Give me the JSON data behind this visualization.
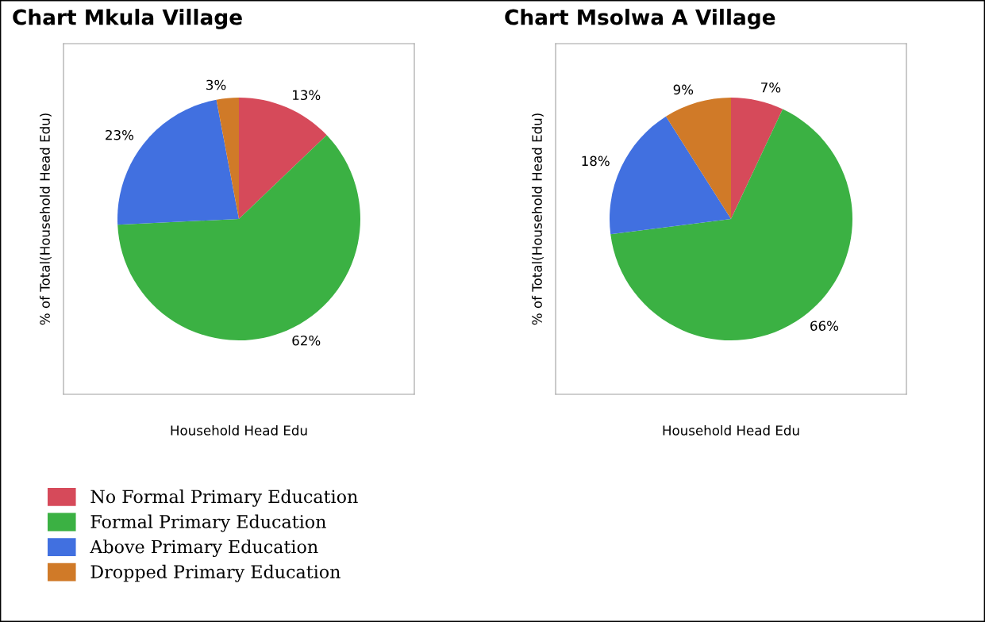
{
  "chart_data": [
    {
      "type": "pie",
      "title": "Chart Mkula Village",
      "xlabel": "Household Head Edu",
      "ylabel": "% of Total(Household Head Edu)",
      "categories": [
        "No Formal Primary Education",
        "Formal Primary Education",
        "Above Primary Education",
        "Dropped Primary Education"
      ],
      "values": [
        13,
        62,
        23,
        3
      ],
      "value_labels": [
        "13%",
        "62%",
        "23%",
        "3%"
      ],
      "colors": [
        "#d64a5a",
        "#3bb143",
        "#4170e0",
        "#d07a28"
      ],
      "legend": "bottom"
    },
    {
      "type": "pie",
      "title": "Chart Msolwa A Village",
      "xlabel": "Household Head Edu",
      "ylabel": "% of Total(Household Head Edu)",
      "categories": [
        null,
        null,
        null,
        null
      ],
      "values": [
        7,
        66,
        18,
        9
      ],
      "value_labels": [
        "7%",
        "66%",
        "18%",
        "9%"
      ],
      "colors": [
        "#d64a5a",
        "#3bb143",
        "#4170e0",
        "#d07a28"
      ]
    }
  ]
}
